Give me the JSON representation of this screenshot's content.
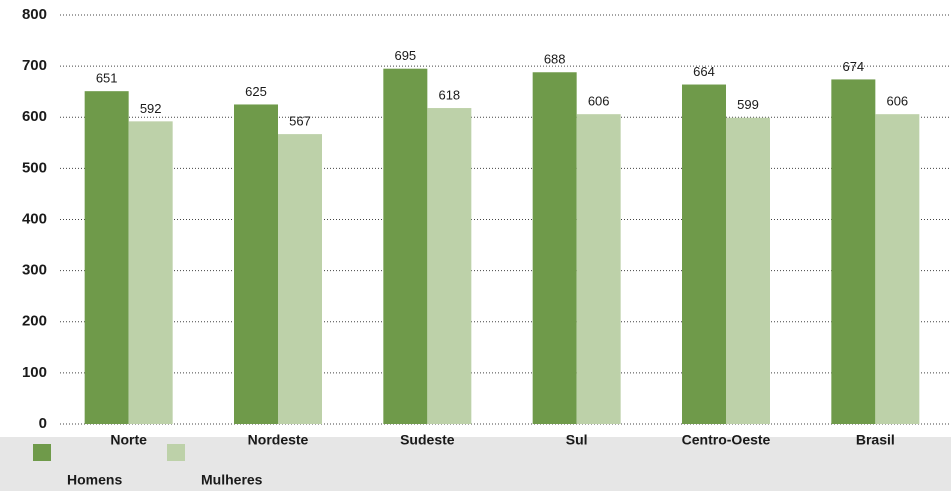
{
  "chart_data": {
    "type": "bar",
    "categories": [
      "Norte",
      "Nordeste",
      "Sudeste",
      "Sul",
      "Centro-Oeste",
      "Brasil"
    ],
    "series": [
      {
        "name": "Homens",
        "color": "#6f9a4a",
        "values": [
          651,
          625,
          695,
          688,
          664,
          674
        ]
      },
      {
        "name": "Mulheres",
        "color": "#bdd1a9",
        "values": [
          592,
          567,
          618,
          606,
          599,
          606
        ]
      }
    ],
    "ylim": [
      0,
      800
    ],
    "yticks": [
      0,
      100,
      200,
      300,
      400,
      500,
      600,
      700,
      800
    ],
    "grid": true,
    "legend": "bottom-left",
    "value_labels_shown": true
  }
}
